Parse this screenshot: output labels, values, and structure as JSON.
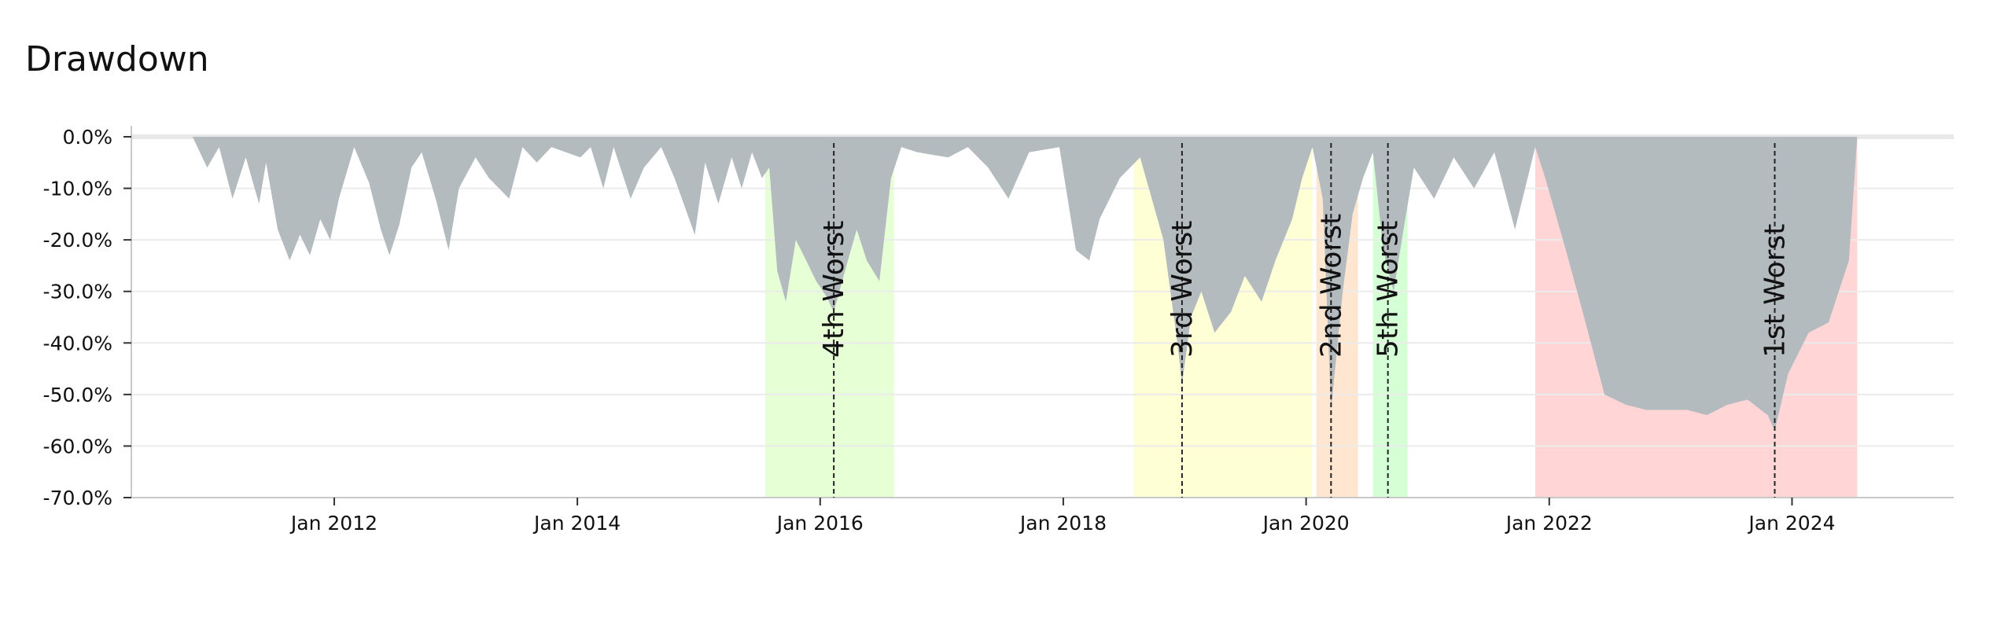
{
  "chart_data": {
    "type": "area",
    "title": "Drawdown",
    "xlabel": "",
    "ylabel": "",
    "x_range": [
      "2010-05-01",
      "2025-05-01"
    ],
    "ylim": [
      -70,
      0
    ],
    "y_ticks": [
      0,
      -10,
      -20,
      -30,
      -40,
      -50,
      -60,
      -70
    ],
    "y_tick_labels": [
      "0.0%",
      "-10.0%",
      "-20.0%",
      "-30.0%",
      "-40.0%",
      "-50.0%",
      "-60.0%",
      "-70.0%"
    ],
    "x_ticks": [
      "2012-01-01",
      "2014-01-01",
      "2016-01-01",
      "2018-01-01",
      "2020-01-01",
      "2022-01-01",
      "2024-01-01"
    ],
    "x_tick_labels": [
      "Jan 2012",
      "Jan 2014",
      "Jan 2016",
      "Jan 2018",
      "Jan 2020",
      "Jan 2022",
      "Jan 2024"
    ],
    "grid": true,
    "fill_color": "#b4bbbf",
    "series": [
      {
        "values": [
          [
            "2010-11-01",
            0
          ],
          [
            "2010-12-15",
            -6
          ],
          [
            "2011-01-20",
            -2
          ],
          [
            "2011-03-01",
            -12
          ],
          [
            "2011-04-10",
            -4
          ],
          [
            "2011-05-20",
            -13
          ],
          [
            "2011-06-10",
            -5
          ],
          [
            "2011-07-15",
            -18
          ],
          [
            "2011-08-20",
            -24
          ],
          [
            "2011-09-20",
            -19
          ],
          [
            "2011-10-20",
            -23
          ],
          [
            "2011-11-20",
            -16
          ],
          [
            "2011-12-20",
            -20
          ],
          [
            "2012-01-15",
            -12
          ],
          [
            "2012-03-01",
            -2
          ],
          [
            "2012-04-15",
            -9
          ],
          [
            "2012-05-20",
            -18
          ],
          [
            "2012-06-15",
            -23
          ],
          [
            "2012-07-15",
            -17
          ],
          [
            "2012-08-20",
            -6
          ],
          [
            "2012-09-20",
            -3
          ],
          [
            "2012-11-01",
            -12
          ],
          [
            "2012-12-10",
            -22
          ],
          [
            "2013-01-10",
            -10
          ],
          [
            "2013-03-01",
            -4
          ],
          [
            "2013-04-10",
            -8
          ],
          [
            "2013-06-10",
            -12
          ],
          [
            "2013-07-20",
            -2
          ],
          [
            "2013-09-01",
            -5
          ],
          [
            "2013-10-15",
            -2
          ],
          [
            "2014-01-10",
            -4
          ],
          [
            "2014-02-10",
            -2
          ],
          [
            "2014-03-20",
            -10
          ],
          [
            "2014-04-20",
            -2
          ],
          [
            "2014-06-10",
            -12
          ],
          [
            "2014-07-20",
            -6
          ],
          [
            "2014-09-10",
            -2
          ],
          [
            "2014-10-20",
            -8
          ],
          [
            "2014-12-20",
            -19
          ],
          [
            "2015-01-20",
            -5
          ],
          [
            "2015-03-01",
            -13
          ],
          [
            "2015-04-10",
            -4
          ],
          [
            "2015-05-10",
            -10
          ],
          [
            "2015-06-10",
            -3
          ],
          [
            "2015-07-10",
            -8
          ],
          [
            "2015-08-01",
            -6
          ],
          [
            "2015-08-25",
            -26
          ],
          [
            "2015-09-20",
            -32
          ],
          [
            "2015-10-20",
            -20
          ],
          [
            "2015-11-20",
            -24
          ],
          [
            "2015-12-20",
            -28
          ],
          [
            "2016-01-20",
            -31
          ],
          [
            "2016-02-11",
            -34
          ],
          [
            "2016-03-20",
            -25
          ],
          [
            "2016-04-20",
            -18
          ],
          [
            "2016-05-20",
            -24
          ],
          [
            "2016-06-27",
            -28
          ],
          [
            "2016-08-01",
            -8
          ],
          [
            "2016-09-01",
            -2
          ],
          [
            "2016-10-20",
            -3
          ],
          [
            "2017-01-20",
            -4
          ],
          [
            "2017-03-20",
            -2
          ],
          [
            "2017-05-20",
            -6
          ],
          [
            "2017-07-20",
            -12
          ],
          [
            "2017-09-20",
            -3
          ],
          [
            "2017-12-20",
            -2
          ],
          [
            "2018-02-08",
            -22
          ],
          [
            "2018-03-20",
            -24
          ],
          [
            "2018-04-20",
            -16
          ],
          [
            "2018-06-20",
            -8
          ],
          [
            "2018-08-20",
            -4
          ],
          [
            "2018-10-29",
            -20
          ],
          [
            "2018-12-10",
            -40
          ],
          [
            "2018-12-24",
            -48
          ],
          [
            "2019-01-20",
            -35
          ],
          [
            "2019-02-20",
            -30
          ],
          [
            "2019-04-01",
            -38
          ],
          [
            "2019-05-20",
            -34
          ],
          [
            "2019-07-01",
            -27
          ],
          [
            "2019-08-20",
            -32
          ],
          [
            "2019-10-01",
            -24
          ],
          [
            "2019-11-20",
            -16
          ],
          [
            "2019-12-20",
            -8
          ],
          [
            "2020-01-20",
            -2
          ],
          [
            "2020-02-20",
            -12
          ],
          [
            "2020-03-16",
            -53
          ],
          [
            "2020-04-20",
            -30
          ],
          [
            "2020-05-20",
            -15
          ],
          [
            "2020-06-20",
            -8
          ],
          [
            "2020-07-20",
            -3
          ],
          [
            "2020-08-20",
            -22
          ],
          [
            "2020-09-20",
            -30
          ],
          [
            "2020-10-20",
            -18
          ],
          [
            "2020-11-20",
            -6
          ],
          [
            "2021-01-20",
            -12
          ],
          [
            "2021-03-20",
            -4
          ],
          [
            "2021-05-20",
            -10
          ],
          [
            "2021-07-20",
            -3
          ],
          [
            "2021-09-20",
            -18
          ],
          [
            "2021-11-20",
            -2
          ],
          [
            "2021-12-20",
            -8
          ],
          [
            "2022-02-20",
            -22
          ],
          [
            "2022-04-20",
            -36
          ],
          [
            "2022-06-16",
            -50
          ],
          [
            "2022-08-20",
            -52
          ],
          [
            "2022-10-20",
            -53
          ],
          [
            "2022-12-28",
            -53
          ],
          [
            "2023-02-20",
            -53
          ],
          [
            "2023-04-20",
            -54
          ],
          [
            "2023-06-20",
            -52
          ],
          [
            "2023-08-20",
            -51
          ],
          [
            "2023-10-20",
            -54
          ],
          [
            "2023-11-10",
            -57
          ],
          [
            "2023-12-20",
            -46
          ],
          [
            "2024-02-20",
            -38
          ],
          [
            "2024-04-20",
            -36
          ],
          [
            "2024-06-20",
            -24
          ],
          [
            "2024-07-15",
            0
          ]
        ]
      }
    ],
    "drawdown_periods": [
      {
        "label": "1st Worst",
        "start": "2021-11-20",
        "end": "2024-07-15",
        "trough": "2023-11-10",
        "color": "#ffd5d5"
      },
      {
        "label": "2nd Worst",
        "start": "2020-02-01",
        "end": "2020-06-05",
        "trough": "2020-03-16",
        "color": "#ffe6d1"
      },
      {
        "label": "3rd Worst",
        "start": "2018-08-01",
        "end": "2020-01-20",
        "trough": "2018-12-24",
        "color": "#ffffd5"
      },
      {
        "label": "4th Worst",
        "start": "2015-07-20",
        "end": "2016-08-10",
        "trough": "2016-02-11",
        "color": "#e6ffd5"
      },
      {
        "label": "5th Worst",
        "start": "2020-07-20",
        "end": "2020-11-01",
        "trough": "2020-09-03",
        "color": "#d5ffd5"
      }
    ]
  }
}
